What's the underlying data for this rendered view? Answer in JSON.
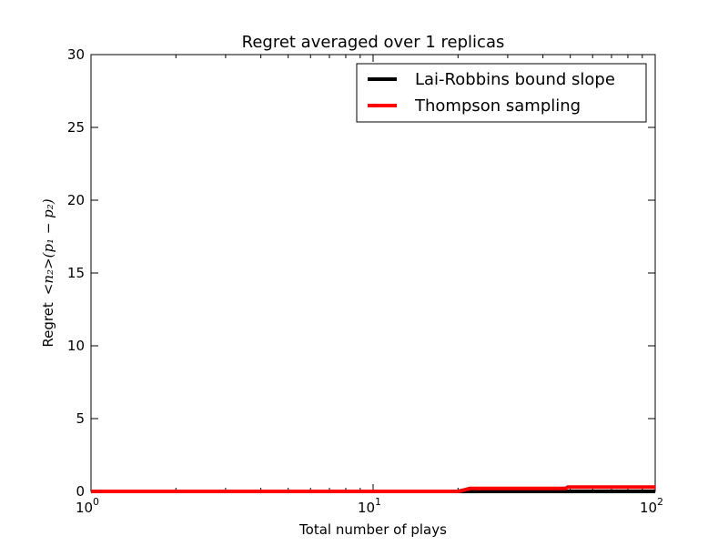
{
  "chart_data": {
    "type": "line",
    "title": "Regret averaged over 1 replicas",
    "xlabel": "Total number of plays",
    "ylabel_text": "Regret",
    "ylabel_math": "<n₂>(p₁ − p₂)",
    "xscale": "log",
    "xlim": [
      1,
      100
    ],
    "ylim": [
      0,
      30
    ],
    "yticks": [
      0,
      5,
      10,
      15,
      20,
      25,
      30
    ],
    "xticks": [
      {
        "value": 1,
        "base": "10",
        "exp": "0"
      },
      {
        "value": 10,
        "base": "10",
        "exp": "1"
      },
      {
        "value": 100,
        "base": "10",
        "exp": "2"
      }
    ],
    "legend_position": "top-right",
    "series": [
      {
        "name": "Lai-Robbins bound slope",
        "color": "#000000",
        "x": [
          1,
          100
        ],
        "y": [
          0,
          0
        ]
      },
      {
        "name": "Thompson sampling",
        "color": "#ff0000",
        "x": [
          1,
          20,
          21,
          22,
          48,
          49,
          100
        ],
        "y": [
          0,
          0,
          0.1,
          0.2,
          0.2,
          0.3,
          0.3
        ]
      }
    ]
  }
}
